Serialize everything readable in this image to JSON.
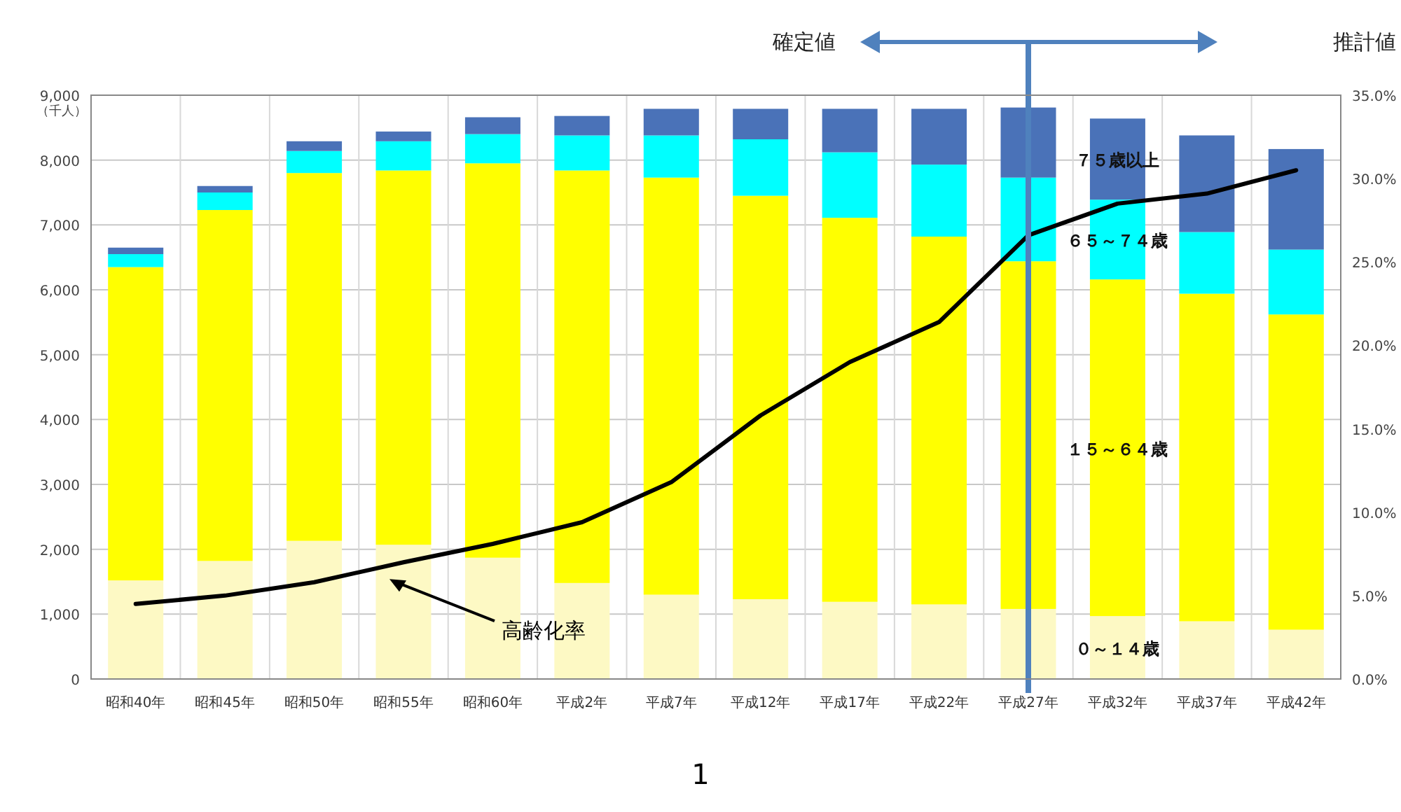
{
  "chart_data": {
    "type": "bar",
    "stacked": true,
    "ylabel": "（千人）",
    "categories": [
      "昭和40年",
      "昭和45年",
      "昭和50年",
      "昭和55年",
      "昭和60年",
      "平成2年",
      "平成7年",
      "平成12年",
      "平成17年",
      "平成22年",
      "平成27年",
      "平成32年",
      "平成37年",
      "平成42年"
    ],
    "series": [
      {
        "name": "０～１４歳",
        "color": "#fdf9c4",
        "values": [
          1520,
          1820,
          2130,
          2070,
          1870,
          1480,
          1300,
          1230,
          1190,
          1150,
          1080,
          970,
          890,
          760
        ]
      },
      {
        "name": "１５～６４歳",
        "color": "#ffff00",
        "values": [
          4830,
          5410,
          5670,
          5770,
          6080,
          6360,
          6430,
          6220,
          5920,
          5670,
          5360,
          5190,
          5050,
          4860
        ]
      },
      {
        "name": "６５～７４歳",
        "color": "#00ffff",
        "values": [
          200,
          270,
          340,
          450,
          450,
          540,
          650,
          870,
          1010,
          1110,
          1290,
          1230,
          950,
          1000
        ]
      },
      {
        "name": "７５歳以上",
        "color": "#4a72b8",
        "values": [
          100,
          100,
          150,
          150,
          260,
          300,
          410,
          470,
          670,
          860,
          1080,
          1250,
          1490,
          1550
        ]
      },
      {
        "name": "高齢化率",
        "type": "line",
        "axis": "y2",
        "color": "#000000",
        "values": [
          4.5,
          5.0,
          5.8,
          7.0,
          8.1,
          9.4,
          11.8,
          15.8,
          19.0,
          21.4,
          26.6,
          28.5,
          29.1,
          30.5
        ]
      }
    ],
    "ylim": [
      0,
      9000
    ],
    "yticks": [
      {
        "value": 0,
        "label": "0"
      },
      {
        "value": 1000,
        "label": "1,000"
      },
      {
        "value": 2000,
        "label": "2,000"
      },
      {
        "value": 3000,
        "label": "3,000"
      },
      {
        "value": 4000,
        "label": "4,000"
      },
      {
        "value": 5000,
        "label": "5,000"
      },
      {
        "value": 6000,
        "label": "6,000"
      },
      {
        "value": 7000,
        "label": "7,000"
      },
      {
        "value": 8000,
        "label": "8,000"
      },
      {
        "value": 9000,
        "label": "9,000"
      }
    ],
    "y2lim": [
      0,
      35
    ],
    "y2ticks": [
      {
        "value": 0,
        "label": "0.0%"
      },
      {
        "value": 5,
        "label": "5.0%"
      },
      {
        "value": 10,
        "label": "10.0%"
      },
      {
        "value": 15,
        "label": "15.0%"
      },
      {
        "value": 20,
        "label": "20.0%"
      },
      {
        "value": 25,
        "label": "25.0%"
      },
      {
        "value": 30,
        "label": "30.0%"
      },
      {
        "value": 35,
        "label": "35.0%"
      }
    ],
    "grid": true,
    "ref_lines": [
      {
        "axis": "x",
        "value": "平成27年",
        "color": "#4f81bd"
      }
    ],
    "annotations": [
      "確定値",
      "推計値",
      "1"
    ]
  }
}
